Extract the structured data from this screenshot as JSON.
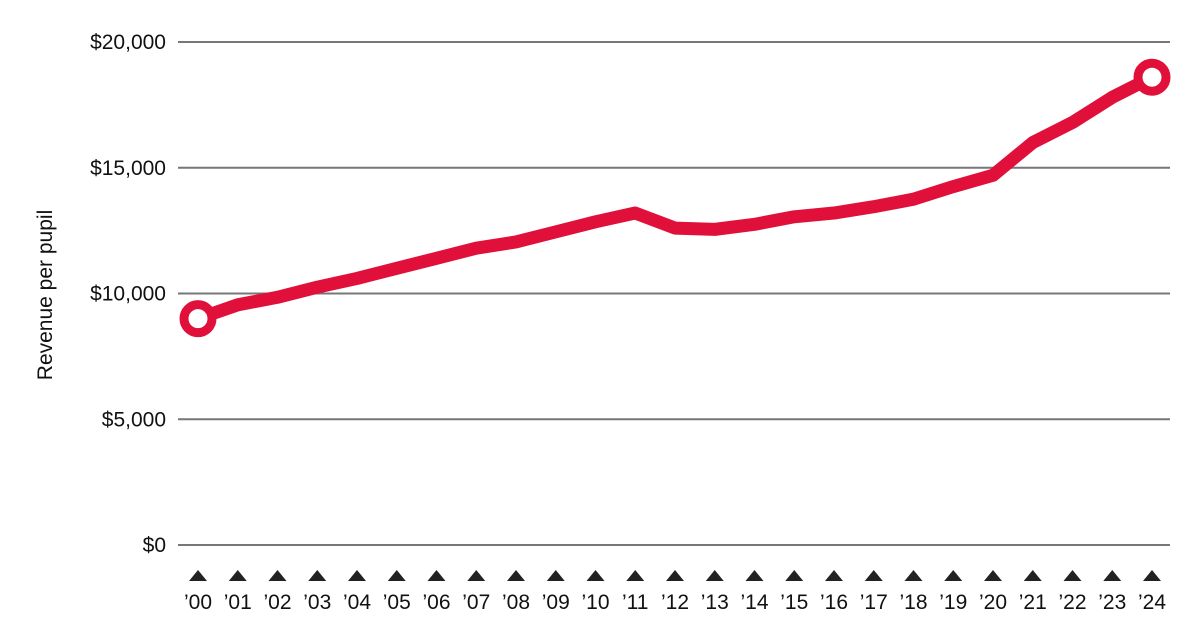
{
  "chart_data": {
    "type": "line",
    "title": "",
    "xlabel": "",
    "ylabel": "Revenue per pupil",
    "ylim": [
      0,
      20000
    ],
    "yticks": [
      {
        "value": 0,
        "label": "$0"
      },
      {
        "value": 5000,
        "label": "$5,000"
      },
      {
        "value": 10000,
        "label": "$10,000"
      },
      {
        "value": 15000,
        "label": "$15,000"
      },
      {
        "value": 20000,
        "label": "$20,000"
      }
    ],
    "categories": [
      "’00",
      "’01",
      "’02",
      "’03",
      "’04",
      "’05",
      "’06",
      "’07",
      "’08",
      "’09",
      "’10",
      "’11",
      "’12",
      "’13",
      "’14",
      "’15",
      "’16",
      "’17",
      "’18",
      "’19",
      "’20",
      "’21",
      "’22",
      "’23",
      "’24"
    ],
    "series": [
      {
        "values": [
          9000,
          9550,
          9850,
          10250,
          10600,
          11000,
          11400,
          11800,
          12050,
          12450,
          12850,
          13200,
          12600,
          12550,
          12750,
          13050,
          13200,
          13450,
          13750,
          14250,
          14700,
          16000,
          16800,
          17800,
          18600
        ],
        "color": "#e0103a"
      }
    ],
    "grid": true,
    "gridline_color": "#777777",
    "tick_marker": "triangle-up",
    "endpoint_markers": "circle"
  }
}
